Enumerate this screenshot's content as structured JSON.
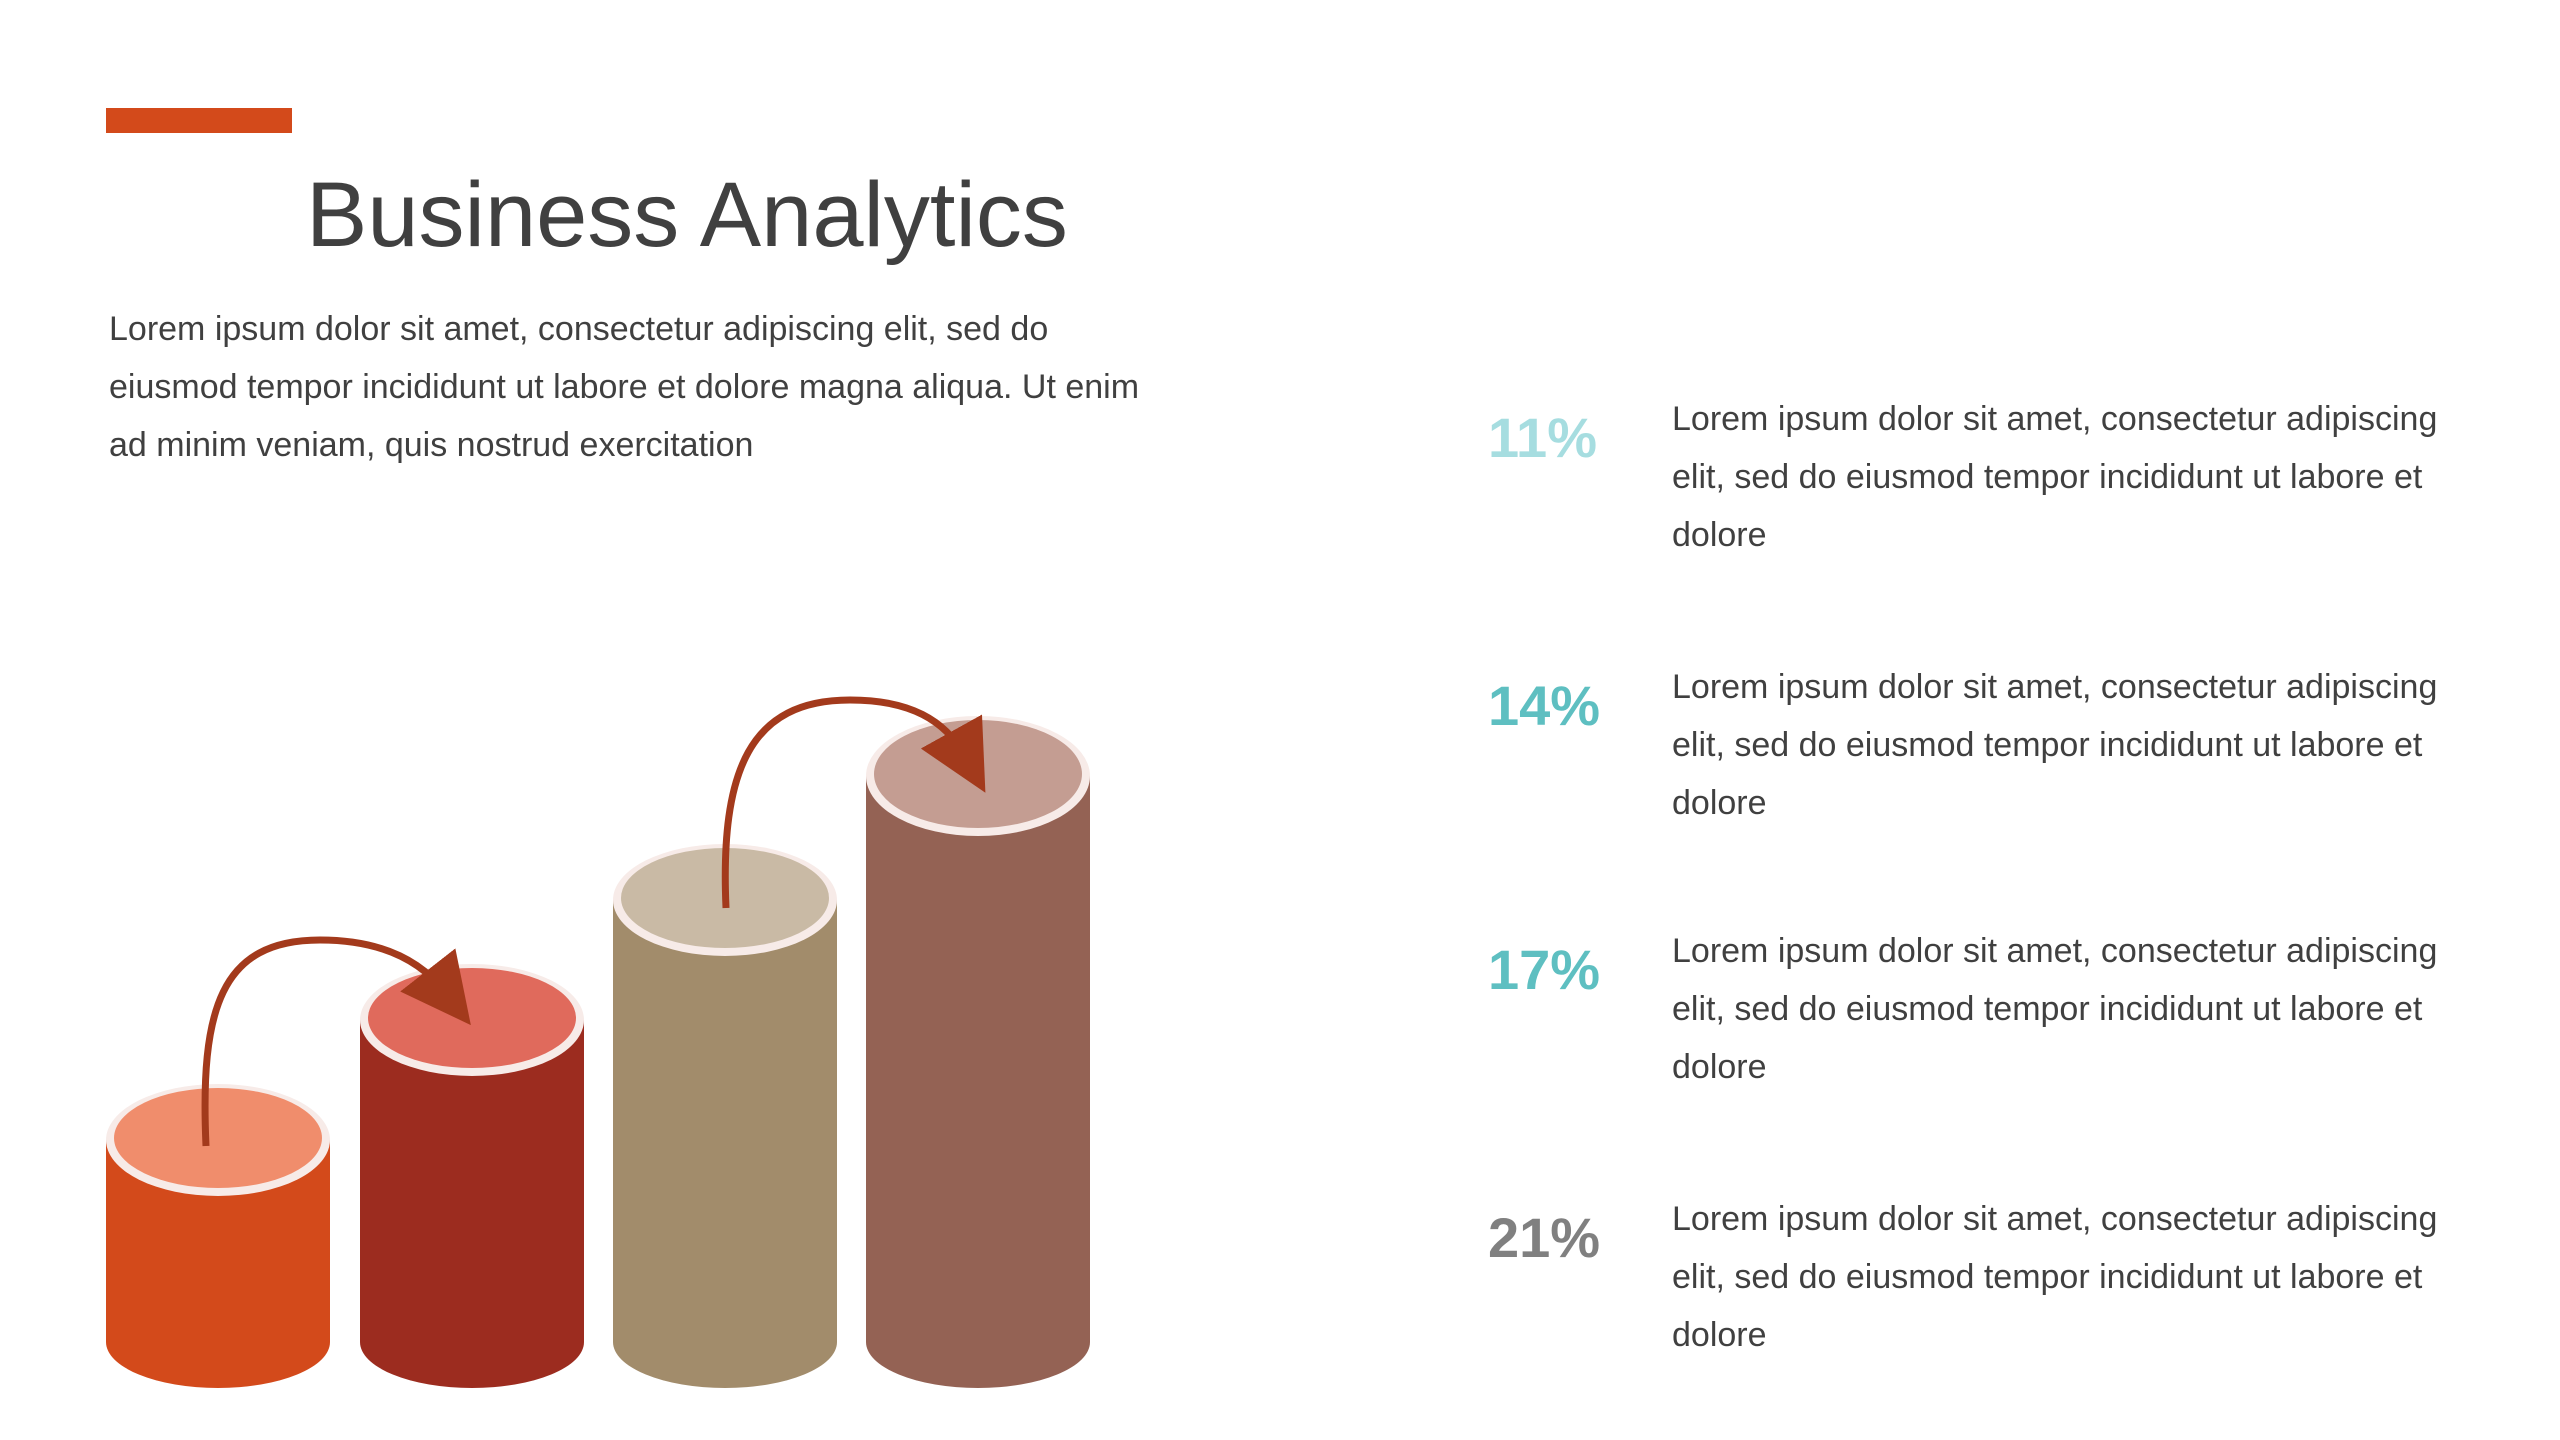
{
  "header": {
    "accent_color": "#d34a1b",
    "title": "Business Analytics",
    "intro": "Lorem ipsum dolor sit amet, consectetur adipiscing elit, sed do eiusmod tempor incididunt ut labore et dolore magna aliqua. Ut enim ad minim veniam, quis nostrud exercitation"
  },
  "stats": [
    {
      "value": "11%",
      "color": "#a6dde0",
      "text": "Lorem ipsum dolor sit amet, consectetur adipiscing elit, sed do eiusmod tempor incididunt ut labore et dolore"
    },
    {
      "value": "14%",
      "color": "#5ebfc1",
      "text": "Lorem ipsum dolor sit amet, consectetur adipiscing elit, sed do eiusmod tempor incididunt ut labore et dolore"
    },
    {
      "value": "17%",
      "color": "#5ebfc1",
      "text": "Lorem ipsum dolor sit amet, consectetur adipiscing elit, sed do eiusmod tempor incididunt ut labore et dolore"
    },
    {
      "value": "21%",
      "color": "#808080",
      "text": "Lorem ipsum dolor sit amet, consectetur adipiscing elit, sed do eiusmod tempor incididunt ut labore et dolore"
    }
  ],
  "cylinders": {
    "arrow_color": "#a33a1c",
    "items": [
      {
        "body_color": "#d34a1b",
        "top_color": "#f08d6c"
      },
      {
        "body_color": "#9c2c1f",
        "top_color": "#e06a5c"
      },
      {
        "body_color": "#a28c6b",
        "top_color": "#c9baa5"
      },
      {
        "body_color": "#946254",
        "top_color": "#c49d92"
      }
    ]
  }
}
